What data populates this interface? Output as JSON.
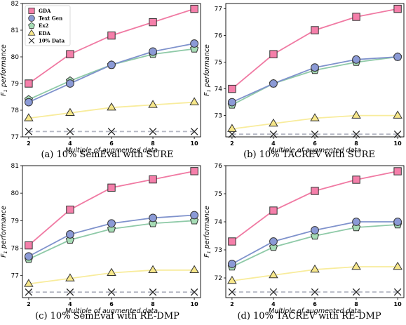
{
  "chart_data": [
    {
      "type": "line",
      "caption": "(a) 10% SemEval with SURE",
      "x": [
        2,
        4,
        6,
        8,
        10
      ],
      "xlabel": "Multiple of augmented data",
      "ylabel": "F1 performance",
      "ylim": [
        77,
        82
      ],
      "yticks": [
        77,
        78,
        79,
        80,
        81,
        82
      ],
      "series": [
        {
          "name": "GDA",
          "values": [
            79.0,
            80.1,
            80.8,
            81.3,
            81.8
          ]
        },
        {
          "name": "Text Gen",
          "values": [
            78.3,
            79.0,
            79.7,
            80.2,
            80.5
          ]
        },
        {
          "name": "Ex2",
          "values": [
            78.4,
            79.1,
            79.7,
            80.1,
            80.3
          ]
        },
        {
          "name": "EDA",
          "values": [
            77.7,
            77.9,
            78.1,
            78.2,
            78.3
          ]
        },
        {
          "name": "10% Data",
          "values": [
            77.2,
            77.2,
            77.2,
            77.2,
            77.2
          ]
        }
      ],
      "legend": "top-left"
    },
    {
      "type": "line",
      "caption": "(b) 10% TACREV with SURE",
      "x": [
        2,
        4,
        6,
        8,
        10
      ],
      "xlabel": "Multiple of augmented data",
      "ylabel": "F1 performance",
      "ylim": [
        72.2,
        77.2
      ],
      "yticks": [
        73,
        74,
        75,
        76,
        77
      ],
      "series": [
        {
          "name": "GDA",
          "values": [
            74.0,
            75.3,
            76.2,
            76.7,
            77.0
          ]
        },
        {
          "name": "Text Gen",
          "values": [
            73.5,
            74.2,
            74.8,
            75.1,
            75.2
          ]
        },
        {
          "name": "Ex2",
          "values": [
            73.4,
            74.2,
            74.7,
            75.0,
            75.2
          ]
        },
        {
          "name": "EDA",
          "values": [
            72.5,
            72.7,
            72.9,
            73.0,
            73.0
          ]
        },
        {
          "name": "10% Data",
          "values": [
            72.3,
            72.3,
            72.3,
            72.3,
            72.3
          ]
        }
      ]
    },
    {
      "type": "line",
      "caption": "(c) 10% SemEval with RE-DMP",
      "x": [
        2,
        4,
        6,
        8,
        10
      ],
      "xlabel": "Multiple of augmented data",
      "ylabel": "F1 performance",
      "ylim": [
        76.2,
        81.0
      ],
      "yticks": [
        77,
        78,
        79,
        80,
        81
      ],
      "series": [
        {
          "name": "GDA",
          "values": [
            78.1,
            79.4,
            80.2,
            80.5,
            80.8
          ]
        },
        {
          "name": "Text Gen",
          "values": [
            77.7,
            78.5,
            78.9,
            79.1,
            79.2
          ]
        },
        {
          "name": "Ex2",
          "values": [
            77.6,
            78.3,
            78.7,
            78.9,
            79.0
          ]
        },
        {
          "name": "EDA",
          "values": [
            76.7,
            76.9,
            77.1,
            77.2,
            77.2
          ]
        },
        {
          "name": "10% Data",
          "values": [
            76.4,
            76.4,
            76.4,
            76.4,
            76.4
          ]
        }
      ]
    },
    {
      "type": "line",
      "caption": "(d) 10% TACREV with RE-DMP",
      "x": [
        2,
        4,
        6,
        8,
        10
      ],
      "xlabel": "Multiple of augmented data",
      "ylabel": "F1 performance",
      "ylim": [
        71.3,
        76.0
      ],
      "yticks": [
        72,
        73,
        74,
        75,
        76
      ],
      "series": [
        {
          "name": "GDA",
          "values": [
            73.3,
            74.4,
            75.1,
            75.5,
            75.8
          ]
        },
        {
          "name": "Text Gen",
          "values": [
            72.5,
            73.3,
            73.7,
            74.0,
            74.0
          ]
        },
        {
          "name": "Ex2",
          "values": [
            72.4,
            73.1,
            73.5,
            73.8,
            73.9
          ]
        },
        {
          "name": "EDA",
          "values": [
            71.9,
            72.1,
            72.3,
            72.4,
            72.4
          ]
        },
        {
          "name": "10% Data",
          "values": [
            71.5,
            71.5,
            71.5,
            71.5,
            71.5
          ]
        }
      ]
    }
  ],
  "style": {
    "GDA": {
      "line": "#f07aa3",
      "fill": "#f57faa",
      "marker": "square"
    },
    "Text Gen": {
      "line": "#7f92cc",
      "fill": "#8b9ad6",
      "marker": "circle"
    },
    "Ex2": {
      "line": "#8fcaa8",
      "fill": "#a6dcb5",
      "marker": "pentagon"
    },
    "EDA": {
      "line": "#f8ec9c",
      "fill": "#f7e78a",
      "marker": "triangle"
    },
    "10% Data": {
      "line": "#b3b6c2",
      "fill": "none",
      "marker": "x",
      "dashed": true
    }
  }
}
